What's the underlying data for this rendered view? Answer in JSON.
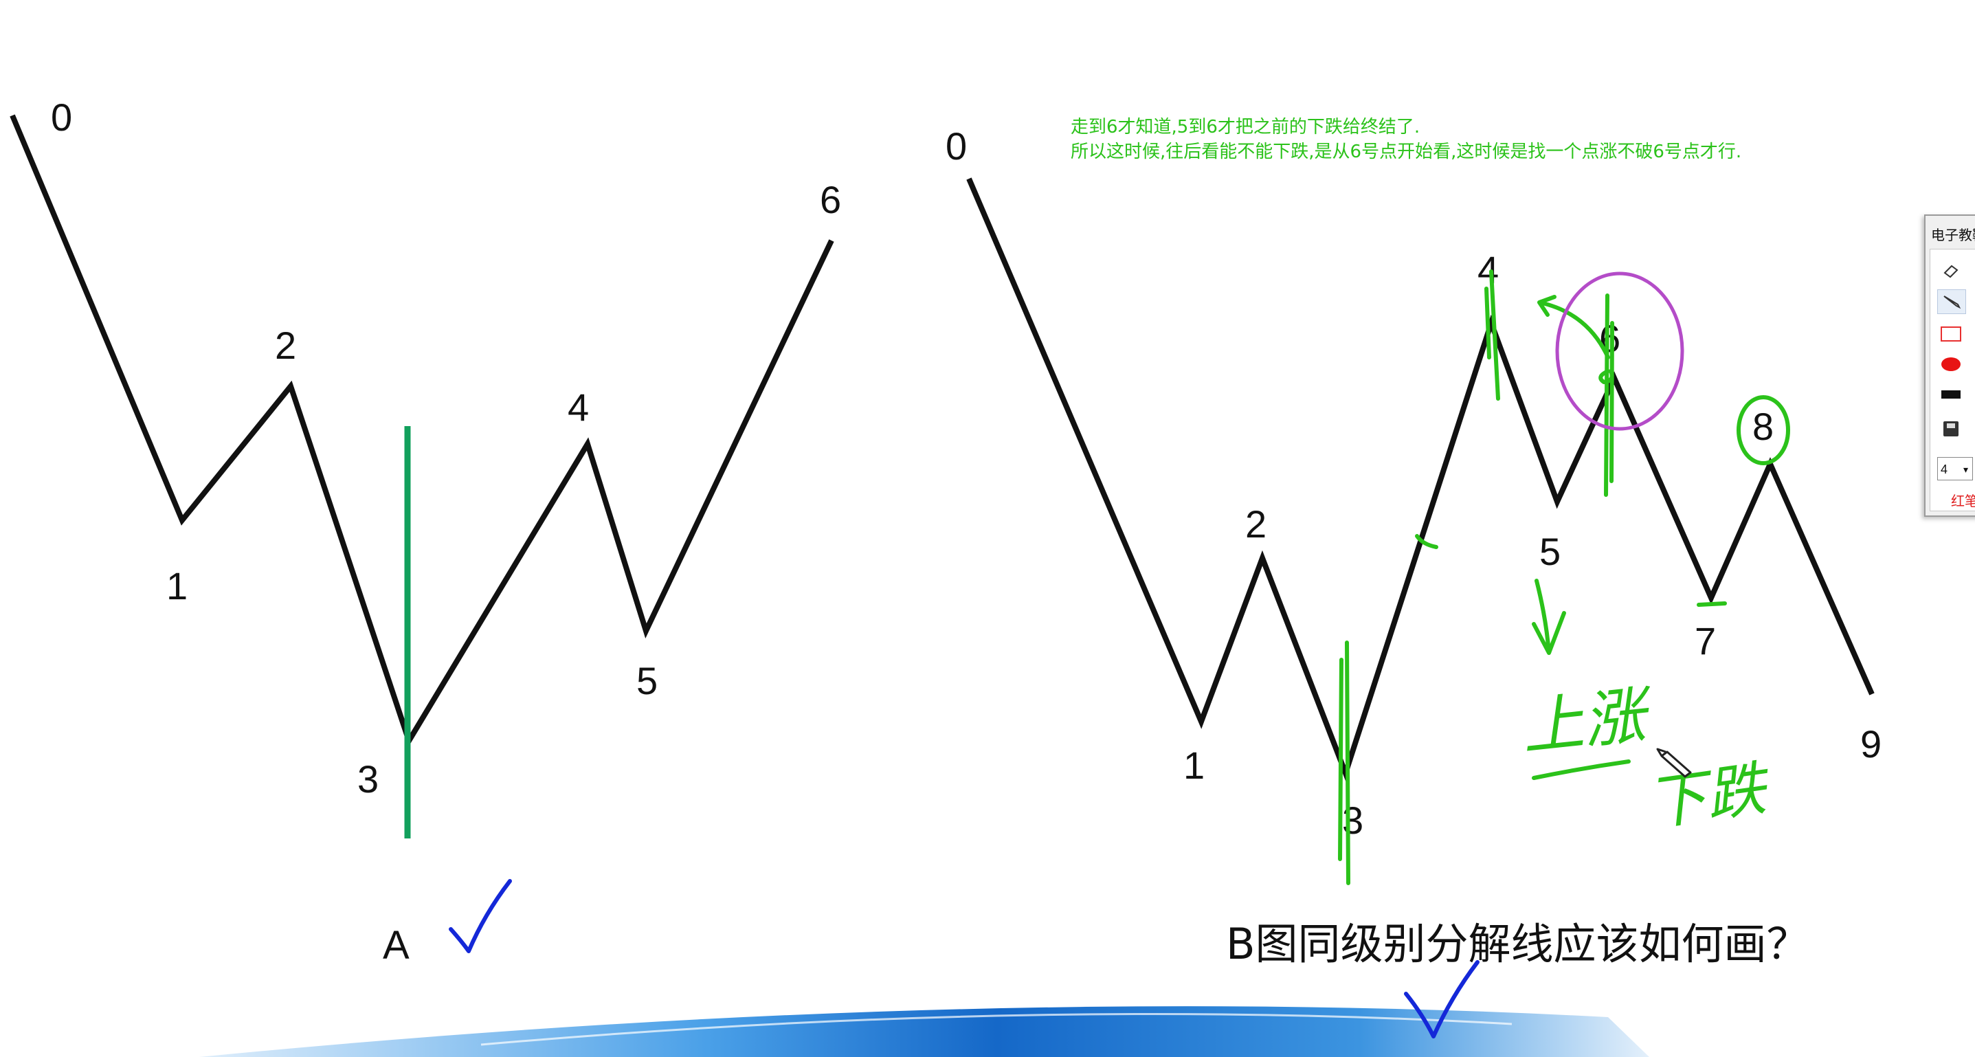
{
  "annotation": {
    "line1": "走到6才知道,5到6才把之前的下跌给终结了.",
    "line2": "所以这时候,往后看能不能下跌,是从6号点开始看,这时候是找一个点涨不破6号点才行."
  },
  "diagram_a": {
    "point_labels": [
      "0",
      "1",
      "2",
      "3",
      "4",
      "5",
      "6"
    ],
    "caption": "A"
  },
  "diagram_b": {
    "point_labels": [
      "0",
      "1",
      "2",
      "3",
      "4",
      "5",
      "6",
      "7",
      "8",
      "9"
    ],
    "question": "B图同级别分解线应该如何画？",
    "handwritten_up": "上涨",
    "handwritten_down": "下跌"
  },
  "toolbox": {
    "title": "电子教鞭",
    "size_value": "4",
    "color_label": "红笔"
  },
  "colors": {
    "line": "#111111",
    "green_line": "#12a05c",
    "handwriting_green": "#2bc21a",
    "check_blue": "#1428d8",
    "circle_purple": "#b44cc8",
    "banner_blue": "#1e78d2"
  }
}
